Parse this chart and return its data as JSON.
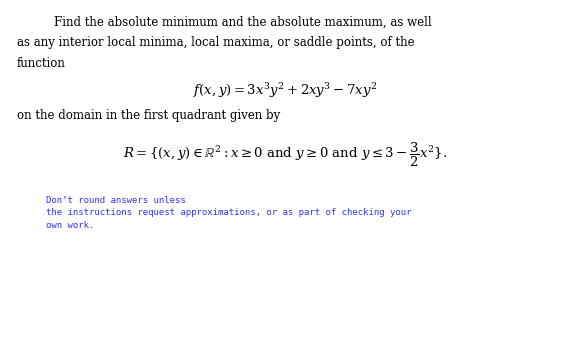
{
  "bg_color": "#ffffff",
  "text_color": "#000000",
  "blue_color": "#3333ff",
  "body_fs": 8.5,
  "formula_fs": 9.5,
  "note_fs": 6.5,
  "line1": "Find the absolute minimum and the absolute maximum, as well",
  "line2": "as any interior local minima, local maxima, or saddle points, of the",
  "line3": "function",
  "domain_line": "on the domain in the first quadrant given by",
  "note_line1": "Don’t round answers unless",
  "note_line2": "the instructions request approximations, or as part of checking your",
  "note_line3": "own work."
}
